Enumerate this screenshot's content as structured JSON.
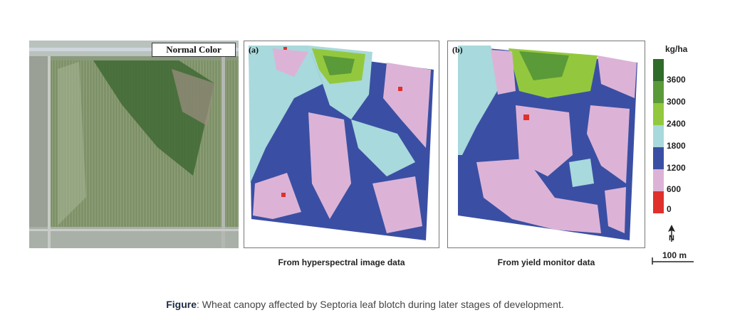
{
  "aerial": {
    "label": "Normal Color"
  },
  "maps": [
    {
      "tag": "(a)",
      "caption": "From hyperspectral image data"
    },
    {
      "tag": "(b)",
      "caption": "From yield monitor data"
    }
  ],
  "legend": {
    "unit": "kg/ha",
    "ticks": [
      "3600",
      "3000",
      "2400",
      "1800",
      "1200",
      "600",
      "0"
    ],
    "colors": [
      "#2f6b2a",
      "#5a9a38",
      "#93c83e",
      "#a8d9dc",
      "#3a4fa3",
      "#dcb3d6",
      "#e0302c"
    ]
  },
  "north": {
    "letter": "N"
  },
  "scale": {
    "label": "100 m"
  },
  "caption": {
    "prefix": "Figure",
    "text": ": Wheat canopy affected by Septoria leaf blotch during later stages of development."
  }
}
